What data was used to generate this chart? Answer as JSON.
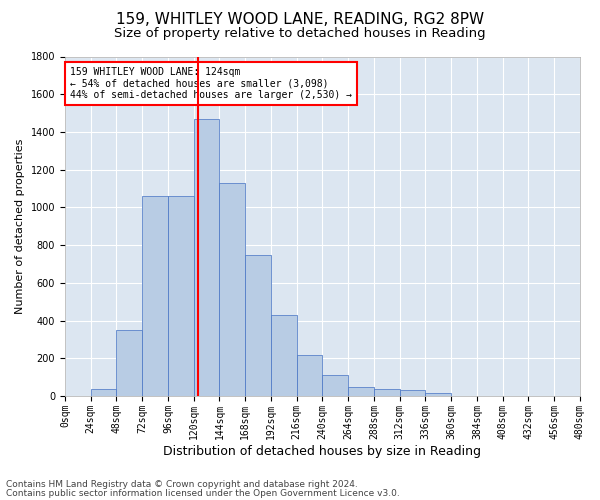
{
  "title1": "159, WHITLEY WOOD LANE, READING, RG2 8PW",
  "title2": "Size of property relative to detached houses in Reading",
  "xlabel": "Distribution of detached houses by size in Reading",
  "ylabel": "Number of detached properties",
  "bins": [
    0,
    24,
    48,
    72,
    96,
    120,
    144,
    168,
    192,
    216,
    240,
    264,
    288,
    312,
    336,
    360,
    384,
    408,
    432,
    456,
    480
  ],
  "counts": [
    0,
    40,
    350,
    1060,
    1060,
    1470,
    1130,
    750,
    430,
    220,
    110,
    50,
    40,
    30,
    15,
    0,
    0,
    0,
    0,
    0
  ],
  "bar_color": "#b8cce4",
  "bar_edge_color": "#4472c4",
  "vline_x": 124,
  "vline_color": "#ff0000",
  "ylim": [
    0,
    1800
  ],
  "yticks": [
    0,
    200,
    400,
    600,
    800,
    1000,
    1200,
    1400,
    1600,
    1800
  ],
  "grid_color": "#ffffff",
  "background_color": "#dce6f1",
  "annotation_text": "159 WHITLEY WOOD LANE: 124sqm\n← 54% of detached houses are smaller (3,098)\n44% of semi-detached houses are larger (2,530) →",
  "annotation_box_color": "#ffffff",
  "annotation_box_edge": "#ff0000",
  "footer1": "Contains HM Land Registry data © Crown copyright and database right 2024.",
  "footer2": "Contains public sector information licensed under the Open Government Licence v3.0.",
  "title1_fontsize": 11,
  "title2_fontsize": 9.5,
  "xlabel_fontsize": 9,
  "ylabel_fontsize": 8,
  "tick_fontsize": 7,
  "annotation_fontsize": 7,
  "footer_fontsize": 6.5
}
